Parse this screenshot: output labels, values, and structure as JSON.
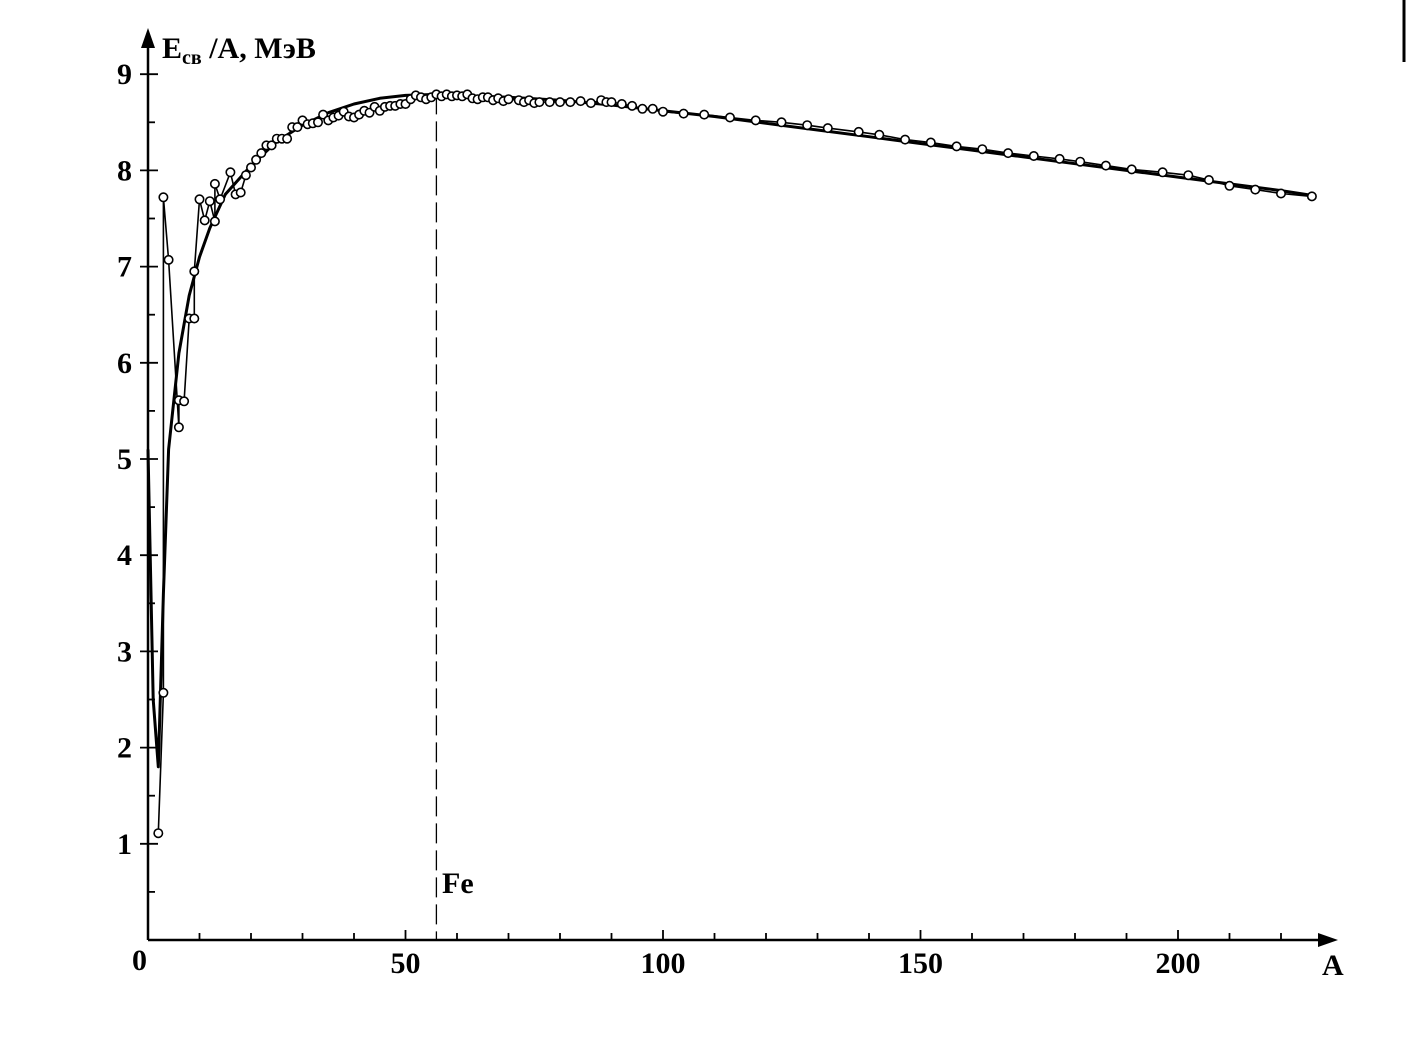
{
  "chart_data": {
    "type": "line",
    "ylabel": {
      "main": "E",
      "sub": "св",
      "rest": " /A, МэВ"
    },
    "xlabel": "A",
    "origin_label": "0",
    "xlim": [
      0,
      230
    ],
    "ylim": [
      0,
      9
    ],
    "x_ticks": [
      {
        "value": 50,
        "label": "50"
      },
      {
        "value": 100,
        "label": "100"
      },
      {
        "value": 150,
        "label": "150"
      },
      {
        "value": 200,
        "label": "200"
      }
    ],
    "x_minor_ticks": [
      10,
      20,
      30,
      40,
      60,
      70,
      80,
      90,
      110,
      120,
      130,
      140,
      160,
      170,
      180,
      190,
      210,
      220
    ],
    "y_ticks": [
      {
        "value": 1,
        "label": "1"
      },
      {
        "value": 2,
        "label": "2"
      },
      {
        "value": 3,
        "label": "3"
      },
      {
        "value": 4,
        "label": "4"
      },
      {
        "value": 5,
        "label": "5"
      },
      {
        "value": 6,
        "label": "6"
      },
      {
        "value": 7,
        "label": "7"
      },
      {
        "value": 8,
        "label": "8"
      },
      {
        "value": 9,
        "label": "9"
      }
    ],
    "y_minor_ticks": [
      0.5,
      1.5,
      2.5,
      3.5,
      4.5,
      5.5,
      6.5,
      7.5,
      8.5
    ],
    "reference_line": {
      "x": 56,
      "label": "Fe",
      "style": "dashed"
    },
    "series": [
      {
        "style": "markers-connected",
        "points": [
          [
            2,
            1.11
          ],
          [
            3,
            2.57
          ],
          [
            3,
            7.72
          ],
          [
            4,
            7.07
          ],
          [
            6,
            5.33
          ],
          [
            6,
            5.61
          ],
          [
            7,
            5.6
          ],
          [
            8,
            6.46
          ],
          [
            9,
            6.46
          ],
          [
            9,
            6.95
          ],
          [
            10,
            7.7
          ],
          [
            11,
            7.48
          ],
          [
            12,
            7.68
          ],
          [
            13,
            7.47
          ],
          [
            13,
            7.86
          ],
          [
            14,
            7.7
          ],
          [
            16,
            7.98
          ],
          [
            17,
            7.75
          ],
          [
            18,
            7.77
          ],
          [
            19,
            7.95
          ],
          [
            20,
            8.03
          ],
          [
            21,
            8.11
          ],
          [
            22,
            8.18
          ],
          [
            23,
            8.26
          ],
          [
            24,
            8.26
          ],
          [
            25,
            8.33
          ],
          [
            26,
            8.33
          ],
          [
            27,
            8.33
          ],
          [
            28,
            8.45
          ],
          [
            29,
            8.45
          ],
          [
            30,
            8.52
          ],
          [
            31,
            8.48
          ],
          [
            32,
            8.49
          ],
          [
            33,
            8.5
          ],
          [
            34,
            8.58
          ],
          [
            35,
            8.52
          ],
          [
            36,
            8.55
          ],
          [
            37,
            8.57
          ],
          [
            38,
            8.61
          ],
          [
            39,
            8.56
          ],
          [
            40,
            8.55
          ],
          [
            41,
            8.58
          ],
          [
            42,
            8.62
          ],
          [
            43,
            8.6
          ],
          [
            44,
            8.66
          ],
          [
            45,
            8.62
          ],
          [
            46,
            8.66
          ],
          [
            47,
            8.67
          ],
          [
            48,
            8.67
          ],
          [
            49,
            8.69
          ],
          [
            50,
            8.69
          ],
          [
            51,
            8.74
          ],
          [
            52,
            8.78
          ],
          [
            53,
            8.76
          ],
          [
            54,
            8.74
          ],
          [
            55,
            8.76
          ],
          [
            56,
            8.79
          ],
          [
            57,
            8.77
          ],
          [
            58,
            8.79
          ],
          [
            59,
            8.77
          ],
          [
            60,
            8.78
          ],
          [
            61,
            8.77
          ],
          [
            62,
            8.79
          ],
          [
            63,
            8.75
          ],
          [
            64,
            8.74
          ],
          [
            65,
            8.76
          ],
          [
            66,
            8.76
          ],
          [
            67,
            8.73
          ],
          [
            68,
            8.75
          ],
          [
            69,
            8.72
          ],
          [
            70,
            8.74
          ],
          [
            72,
            8.73
          ],
          [
            73,
            8.71
          ],
          [
            74,
            8.73
          ],
          [
            75,
            8.7
          ],
          [
            76,
            8.71
          ],
          [
            78,
            8.71
          ],
          [
            80,
            8.71
          ],
          [
            82,
            8.71
          ],
          [
            84,
            8.72
          ],
          [
            86,
            8.7
          ],
          [
            88,
            8.73
          ],
          [
            89,
            8.71
          ],
          [
            90,
            8.71
          ],
          [
            92,
            8.69
          ],
          [
            94,
            8.67
          ],
          [
            96,
            8.64
          ],
          [
            98,
            8.64
          ],
          [
            100,
            8.61
          ],
          [
            104,
            8.59
          ],
          [
            108,
            8.58
          ],
          [
            113,
            8.55
          ],
          [
            118,
            8.52
          ],
          [
            123,
            8.5
          ],
          [
            128,
            8.47
          ],
          [
            132,
            8.44
          ],
          [
            138,
            8.4
          ],
          [
            142,
            8.37
          ],
          [
            147,
            8.32
          ],
          [
            152,
            8.29
          ],
          [
            157,
            8.25
          ],
          [
            162,
            8.22
          ],
          [
            167,
            8.18
          ],
          [
            172,
            8.15
          ],
          [
            177,
            8.12
          ],
          [
            181,
            8.09
          ],
          [
            186,
            8.05
          ],
          [
            191,
            8.01
          ],
          [
            197,
            7.98
          ],
          [
            202,
            7.95
          ],
          [
            206,
            7.9
          ],
          [
            210,
            7.84
          ],
          [
            215,
            7.8
          ],
          [
            220,
            7.76
          ],
          [
            226,
            7.73
          ]
        ]
      },
      {
        "style": "smooth-curve",
        "points": [
          [
            0,
            5.1
          ],
          [
            1,
            2.5
          ],
          [
            2,
            1.8
          ],
          [
            3,
            3.6
          ],
          [
            4,
            5.1
          ],
          [
            6,
            6.1
          ],
          [
            8,
            6.7
          ],
          [
            10,
            7.1
          ],
          [
            12,
            7.4
          ],
          [
            15,
            7.75
          ],
          [
            20,
            8.05
          ],
          [
            25,
            8.3
          ],
          [
            30,
            8.47
          ],
          [
            35,
            8.6
          ],
          [
            40,
            8.69
          ],
          [
            45,
            8.75
          ],
          [
            50,
            8.78
          ],
          [
            56,
            8.79
          ],
          [
            60,
            8.78
          ],
          [
            70,
            8.76
          ],
          [
            80,
            8.73
          ],
          [
            90,
            8.68
          ],
          [
            100,
            8.62
          ],
          [
            110,
            8.56
          ],
          [
            120,
            8.49
          ],
          [
            130,
            8.42
          ],
          [
            140,
            8.35
          ],
          [
            150,
            8.28
          ],
          [
            160,
            8.21
          ],
          [
            170,
            8.14
          ],
          [
            180,
            8.07
          ],
          [
            190,
            8.0
          ],
          [
            200,
            7.93
          ],
          [
            210,
            7.86
          ],
          [
            220,
            7.79
          ],
          [
            226,
            7.74
          ]
        ]
      }
    ]
  }
}
